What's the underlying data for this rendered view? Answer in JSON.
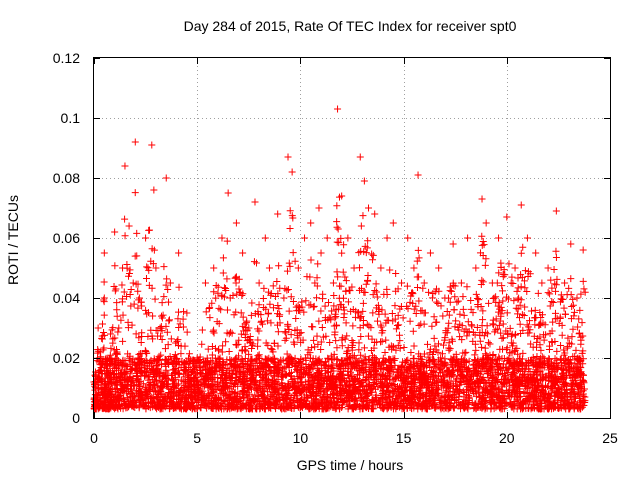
{
  "chart_data": {
    "type": "scatter",
    "title": "Day 284 of 2015, Rate Of TEC Index for receiver spt0",
    "xlabel": "GPS time / hours",
    "ylabel": "ROTI / TECUs",
    "xlim": [
      0,
      25
    ],
    "ylim": [
      0,
      0.12
    ],
    "x_ticks": [
      0,
      5,
      10,
      15,
      20,
      25
    ],
    "x_tick_labels": [
      "0",
      "5",
      "10",
      "15",
      "20",
      "25"
    ],
    "y_ticks": [
      0,
      0.02,
      0.04,
      0.06,
      0.08,
      0.1,
      0.12
    ],
    "y_tick_labels": [
      "0",
      "0.02",
      "0.04",
      "0.06",
      "0.08",
      "0.1",
      "0.12"
    ],
    "grid": true,
    "marker": "+",
    "marker_color": "#ff0000",
    "series": [
      {
        "name": "ROTI",
        "x": [
          0.0,
          0.2,
          0.3,
          0.5,
          0.5,
          0.6,
          0.8,
          1.0,
          1.2,
          1.5,
          1.7,
          1.9,
          2.0,
          2.2,
          2.5,
          2.8,
          2.9,
          3.0,
          3.2,
          3.5,
          3.7,
          3.9,
          4.1,
          4.5,
          5.0,
          5.4,
          5.8,
          6.2,
          6.5,
          6.6,
          6.9,
          7.2,
          7.5,
          7.8,
          8.0,
          8.3,
          8.5,
          8.9,
          9.2,
          9.4,
          9.6,
          9.9,
          10.2,
          10.5,
          10.7,
          10.9,
          11.0,
          11.3,
          11.6,
          11.8,
          12.0,
          12.3,
          12.6,
          12.9,
          13.1,
          13.3,
          13.6,
          13.9,
          14.2,
          14.5,
          14.9,
          15.2,
          15.5,
          15.7,
          16.0,
          16.3,
          16.7,
          17.0,
          17.4,
          17.8,
          18.1,
          18.5,
          18.8,
          19.0,
          19.3,
          19.6,
          20.0,
          20.4,
          20.7,
          21.0,
          21.4,
          21.7,
          22.0,
          22.4,
          22.8,
          23.1,
          23.4,
          23.7
        ],
        "y": [
          0.012,
          0.03,
          0.022,
          0.055,
          0.04,
          0.018,
          0.028,
          0.062,
          0.03,
          0.084,
          0.064,
          0.045,
          0.092,
          0.04,
          0.06,
          0.091,
          0.076,
          0.05,
          0.03,
          0.08,
          0.045,
          0.02,
          0.055,
          0.035,
          0.02,
          0.045,
          0.05,
          0.06,
          0.075,
          0.04,
          0.065,
          0.055,
          0.03,
          0.072,
          0.045,
          0.06,
          0.05,
          0.068,
          0.04,
          0.087,
          0.082,
          0.05,
          0.06,
          0.065,
          0.045,
          0.07,
          0.055,
          0.06,
          0.045,
          0.103,
          0.074,
          0.06,
          0.05,
          0.087,
          0.079,
          0.07,
          0.068,
          0.05,
          0.06,
          0.065,
          0.045,
          0.06,
          0.05,
          0.081,
          0.045,
          0.055,
          0.05,
          0.04,
          0.058,
          0.045,
          0.06,
          0.05,
          0.073,
          0.065,
          0.045,
          0.06,
          0.067,
          0.05,
          0.071,
          0.06,
          0.055,
          0.045,
          0.05,
          0.069,
          0.045,
          0.058,
          0.04,
          0.056
        ],
        "baseline_range": [
          0.003,
          0.02
        ]
      }
    ]
  }
}
